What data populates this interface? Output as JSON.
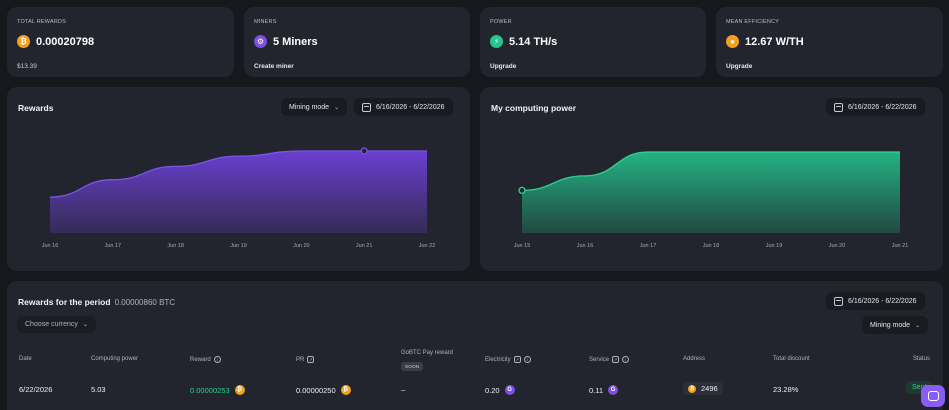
{
  "stats": [
    {
      "label": "TOTAL REWARDS",
      "value": "0.00020798",
      "foot": "$13.39",
      "icon": "bitcoin-icon"
    },
    {
      "label": "MINERS",
      "value": "5 Miners",
      "foot": "Create miner",
      "icon": "miner-icon"
    },
    {
      "label": "POWER",
      "value": "5.14 TH/s",
      "foot": "Upgrade",
      "icon": "lightning-icon"
    },
    {
      "label": "MEAN EFFICIENCY",
      "value": "12.67 W/TH",
      "foot": "Upgrade",
      "icon": "bulb-icon"
    }
  ],
  "rewards_panel": {
    "title": "Rewards",
    "mode_label": "Mining mode",
    "date_range": "6/16/2026 - 6/22/2026"
  },
  "power_panel": {
    "title": "My computing power",
    "date_range": "6/16/2026 - 6/22/2026"
  },
  "chart_data": [
    {
      "type": "area",
      "x": [
        "Jun 16",
        "Jun 17",
        "Jun 18",
        "Jun 19",
        "Jun 20",
        "Jun 21",
        "Jun 22"
      ],
      "y": [
        0.55,
        0.72,
        0.85,
        0.95,
        1.0,
        1.0,
        1.0
      ],
      "color": "#6a3fd0",
      "grid": false
    },
    {
      "type": "area",
      "x": [
        "Jun 15",
        "Jun 16",
        "Jun 17",
        "Jun 18",
        "Jun 19",
        "Jun 20",
        "Jun 21"
      ],
      "y": [
        0.55,
        0.72,
        1.0,
        1.0,
        1.0,
        1.0,
        1.0
      ],
      "color": "#23b383",
      "grid": false
    }
  ],
  "period": {
    "title": "Rewards for the period",
    "total": "0.00000860 BTC",
    "currency_label": "Choose currency",
    "date_range": "6/16/2026 - 6/22/2026",
    "mode_label": "Mining mode",
    "pay_reward_label": "GoBTC Pay reward",
    "soon": "SOON",
    "columns": {
      "date": "Date",
      "power": "Computing power",
      "reward": "Reward",
      "pr": "PR",
      "electricity": "Electricity",
      "service": "Service",
      "address": "Address",
      "discount": "Total discount",
      "status": "Status"
    },
    "row": {
      "date": "6/22/2026",
      "power": "5.03",
      "reward": "0.00000253",
      "pr": "0.00000250",
      "pay": "–",
      "electricity": "0.20",
      "service": "0.11",
      "address": "2496",
      "discount": "23.28%",
      "status": "Sent"
    }
  }
}
